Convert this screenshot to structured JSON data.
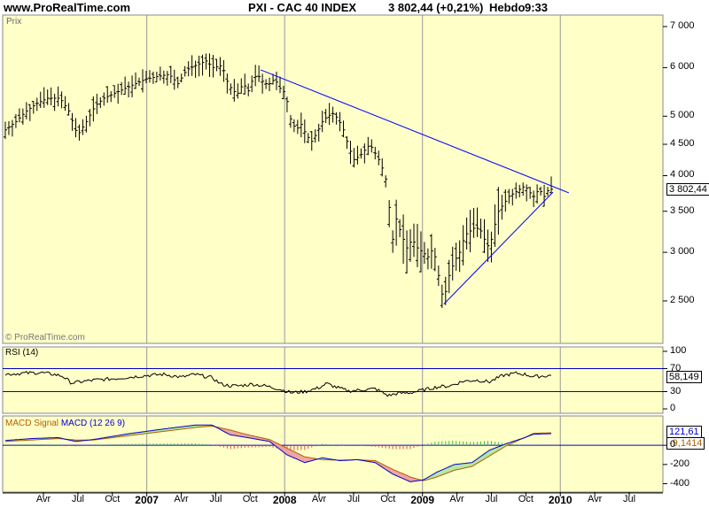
{
  "header": {
    "site": "www.ProRealTime.com",
    "instrument": "PXI - CAC 40 INDEX",
    "last": "3 802,44 (+0,21%)",
    "period": "Hebdo",
    "time": "9:33"
  },
  "price_panel": {
    "label": "Prix",
    "watermark": "© ProRealTime.com",
    "last_value": "3 802,44"
  },
  "rsi_panel": {
    "label": "RSI (14)",
    "value": "58,149",
    "level_high": "70",
    "level_low": "30"
  },
  "macd_panel": {
    "label_prefix": "MACD",
    "label_signal": "Signal",
    "label_macd": "MACD (12 26 9)",
    "value_macd": "121,61",
    "value_hist": "-9,1414"
  },
  "colors": {
    "panel_bg": "#ffffc8",
    "trendline": "#0000ff",
    "macd_fill_up": "#b4e6a0",
    "macd_fill_down": "#f0a0a0",
    "hist_up": "#44bb44",
    "hist_down": "#e05050",
    "signal": "#b06000",
    "macd": "#0000cc"
  },
  "chart_data": [
    {
      "type": "ohlc",
      "title": "PXI - CAC 40 INDEX",
      "scale": "log",
      "ylim": [
        2200,
        7000
      ],
      "y_ticks": [
        "7 000",
        "6 000",
        "5 000",
        "4 500",
        "4 000",
        "3 500",
        "3 000",
        "2 500"
      ],
      "x_ticks": [
        {
          "label": "Avr",
          "year": false
        },
        {
          "label": "Jul",
          "year": false
        },
        {
          "label": "Oct",
          "year": false
        },
        {
          "label": "2007",
          "year": true
        },
        {
          "label": "Avr",
          "year": false
        },
        {
          "label": "Jul",
          "year": false
        },
        {
          "label": "Oct",
          "year": false
        },
        {
          "label": "2008",
          "year": true
        },
        {
          "label": "Avr",
          "year": false
        },
        {
          "label": "Jul",
          "year": false
        },
        {
          "label": "Oct",
          "year": false
        },
        {
          "label": "2009",
          "year": true
        },
        {
          "label": "Avr",
          "year": false
        },
        {
          "label": "Jul",
          "year": false
        },
        {
          "label": "Oct",
          "year": false
        },
        {
          "label": "2010",
          "year": true
        },
        {
          "label": "Avr",
          "year": false
        },
        {
          "label": "Jul",
          "year": false
        }
      ],
      "series": [
        {
          "values": [
            [
              0,
              4750
            ],
            [
              12,
              4900
            ],
            [
              24,
              5100
            ],
            [
              36,
              5250
            ],
            [
              48,
              5350
            ],
            [
              62,
              5350
            ],
            [
              72,
              5100
            ],
            [
              82,
              4650
            ],
            [
              92,
              4900
            ],
            [
              102,
              5200
            ],
            [
              112,
              5350
            ],
            [
              124,
              5450
            ],
            [
              136,
              5550
            ],
            [
              148,
              5650
            ],
            [
              160,
              5750
            ],
            [
              172,
              5800
            ],
            [
              186,
              5850
            ],
            [
              196,
              5650
            ],
            [
              206,
              5950
            ],
            [
              216,
              6050
            ],
            [
              228,
              6150
            ],
            [
              236,
              6000
            ],
            [
              246,
              6050
            ],
            [
              252,
              5700
            ],
            [
              258,
              5500
            ],
            [
              264,
              5450
            ],
            [
              270,
              5650
            ],
            [
              276,
              5500
            ],
            [
              282,
              5800
            ],
            [
              288,
              5800
            ],
            [
              294,
              5650
            ],
            [
              300,
              5650
            ],
            [
              306,
              5750
            ],
            [
              312,
              5550
            ],
            [
              318,
              5450
            ],
            [
              324,
              4950
            ],
            [
              330,
              4750
            ],
            [
              336,
              4850
            ],
            [
              342,
              4650
            ],
            [
              348,
              4550
            ],
            [
              354,
              4700
            ],
            [
              360,
              4900
            ],
            [
              366,
              5000
            ],
            [
              372,
              5050
            ],
            [
              378,
              4950
            ],
            [
              384,
              4750
            ],
            [
              390,
              4450
            ],
            [
              396,
              4250
            ],
            [
              402,
              4300
            ],
            [
              408,
              4400
            ],
            [
              414,
              4500
            ],
            [
              420,
              4350
            ],
            [
              426,
              4200
            ],
            [
              432,
              3950
            ],
            [
              436,
              3550
            ],
            [
              440,
              3150
            ],
            [
              444,
              3400
            ],
            [
              450,
              3200
            ],
            [
              456,
              3050
            ],
            [
              462,
              3150
            ],
            [
              468,
              3050
            ],
            [
              474,
              3000
            ],
            [
              480,
              2950
            ],
            [
              486,
              3050
            ],
            [
              490,
              2850
            ],
            [
              494,
              2650
            ],
            [
              498,
              2480
            ],
            [
              502,
              2700
            ],
            [
              506,
              2800
            ],
            [
              510,
              2900
            ],
            [
              516,
              3000
            ],
            [
              522,
              3200
            ],
            [
              528,
              3250
            ],
            [
              534,
              3300
            ],
            [
              540,
              3250
            ],
            [
              546,
              3100
            ],
            [
              550,
              3050
            ],
            [
              554,
              3250
            ],
            [
              560,
              3500
            ],
            [
              566,
              3600
            ],
            [
              572,
              3700
            ],
            [
              578,
              3750
            ],
            [
              584,
              3800
            ],
            [
              590,
              3850
            ],
            [
              596,
              3750
            ],
            [
              600,
              3700
            ],
            [
              606,
              3800
            ],
            [
              612,
              3700
            ],
            [
              618,
              3820
            ],
            [
              620,
              3802
            ]
          ]
        }
      ],
      "annotations": [
        "trendline resistance from 2007 Oct high to Dec 2009",
        "support trendline from Mar 2009 low"
      ]
    },
    {
      "type": "line",
      "title": "RSI (14)",
      "ylim": [
        0,
        100
      ],
      "y_ticks": [
        "100",
        "70",
        "30",
        "0"
      ],
      "levels": [
        70,
        30
      ],
      "series": [
        {
          "values": [
            [
              0,
              60
            ],
            [
              20,
              62
            ],
            [
              40,
              63
            ],
            [
              55,
              60
            ],
            [
              65,
              57
            ],
            [
              75,
              45
            ],
            [
              85,
              47
            ],
            [
              100,
              50
            ],
            [
              120,
              52
            ],
            [
              140,
              55
            ],
            [
              160,
              58
            ],
            [
              180,
              60
            ],
            [
              200,
              55
            ],
            [
              215,
              60
            ],
            [
              225,
              57
            ],
            [
              235,
              54
            ],
            [
              245,
              43
            ],
            [
              255,
              40
            ],
            [
              265,
              40
            ],
            [
              280,
              43
            ],
            [
              295,
              40
            ],
            [
              310,
              35
            ],
            [
              325,
              28
            ],
            [
              340,
              30
            ],
            [
              355,
              36
            ],
            [
              365,
              44
            ],
            [
              375,
              38
            ],
            [
              390,
              31
            ],
            [
              405,
              33
            ],
            [
              420,
              35
            ],
            [
              435,
              23
            ],
            [
              445,
              27
            ],
            [
              460,
              28
            ],
            [
              475,
              33
            ],
            [
              490,
              38
            ],
            [
              505,
              40
            ],
            [
              520,
              48
            ],
            [
              535,
              50
            ],
            [
              550,
              47
            ],
            [
              565,
              58
            ],
            [
              580,
              62
            ],
            [
              590,
              60
            ],
            [
              600,
              56
            ],
            [
              610,
              57
            ],
            [
              620,
              58
            ]
          ]
        }
      ]
    },
    {
      "type": "line",
      "title": "MACD (12 26 9)",
      "ylim": [
        -450,
        250
      ],
      "y_ticks": [
        "0",
        "-200",
        "-400"
      ],
      "series": [
        {
          "name": "MACD",
          "values": [
            [
              0,
              50
            ],
            [
              30,
              70
            ],
            [
              60,
              80
            ],
            [
              80,
              40
            ],
            [
              100,
              60
            ],
            [
              140,
              120
            ],
            [
              180,
              170
            ],
            [
              215,
              210
            ],
            [
              235,
              210
            ],
            [
              255,
              110
            ],
            [
              275,
              80
            ],
            [
              300,
              40
            ],
            [
              320,
              -100
            ],
            [
              340,
              -180
            ],
            [
              360,
              -130
            ],
            [
              380,
              -160
            ],
            [
              400,
              -150
            ],
            [
              420,
              -180
            ],
            [
              440,
              -300
            ],
            [
              460,
              -380
            ],
            [
              475,
              -360
            ],
            [
              490,
              -280
            ],
            [
              510,
              -200
            ],
            [
              530,
              -180
            ],
            [
              550,
              -50
            ],
            [
              570,
              20
            ],
            [
              590,
              80
            ],
            [
              600,
              115
            ],
            [
              620,
              121
            ]
          ]
        },
        {
          "name": "Signal",
          "values": [
            [
              0,
              40
            ],
            [
              30,
              55
            ],
            [
              60,
              70
            ],
            [
              80,
              55
            ],
            [
              100,
              55
            ],
            [
              140,
              100
            ],
            [
              180,
              145
            ],
            [
              215,
              185
            ],
            [
              235,
              200
            ],
            [
              255,
              160
            ],
            [
              275,
              110
            ],
            [
              300,
              60
            ],
            [
              320,
              -30
            ],
            [
              340,
              -120
            ],
            [
              360,
              -150
            ],
            [
              380,
              -155
            ],
            [
              400,
              -150
            ],
            [
              420,
              -160
            ],
            [
              440,
              -250
            ],
            [
              460,
              -330
            ],
            [
              475,
              -370
            ],
            [
              490,
              -330
            ],
            [
              510,
              -260
            ],
            [
              530,
              -220
            ],
            [
              550,
              -110
            ],
            [
              570,
              0
            ],
            [
              590,
              80
            ],
            [
              600,
              125
            ],
            [
              620,
              130
            ]
          ]
        }
      ]
    }
  ]
}
